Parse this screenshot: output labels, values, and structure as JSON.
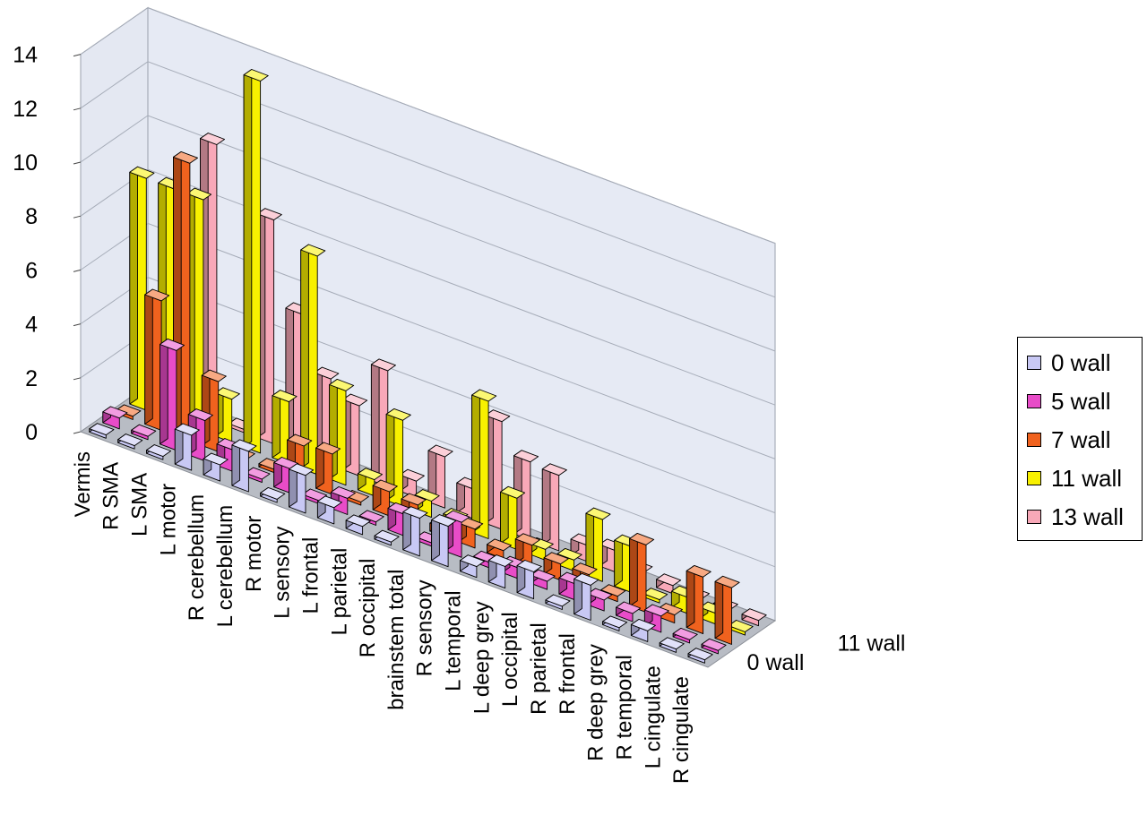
{
  "chart_data": {
    "type": "bar",
    "subtype": "3d-column",
    "title": "",
    "categories": [
      "Vermis",
      "R SMA",
      "L SMA",
      "L motor",
      "R cerebellum",
      "L cerebellum",
      "R motor",
      "L sensory",
      "L frontal",
      "L parietal",
      "R occipital",
      "brainstem total",
      "R sensory",
      "L temporal",
      "L deep grey",
      "L occipital",
      "R parietal",
      "R frontal",
      "R deep grey",
      "R temporal",
      "L cingulate",
      "R cingulate"
    ],
    "series": [
      {
        "name": "0 wall",
        "color": "#c8c8f4",
        "values": [
          0,
          0,
          0,
          1.3,
          0.6,
          1.5,
          0,
          1.4,
          0.6,
          0.3,
          0,
          1.4,
          1.5,
          0.4,
          0.8,
          1,
          0,
          1.3,
          0,
          0.4,
          0,
          0
        ]
      },
      {
        "name": "5 wall",
        "color": "#e84cc8",
        "values": [
          0.4,
          0,
          3.7,
          1.5,
          0.8,
          0,
          0.9,
          0,
          0.6,
          0,
          0.8,
          0,
          1.3,
          0.2,
          0.4,
          0.3,
          0.6,
          0.4,
          0.3,
          0.6,
          0,
          0
        ]
      },
      {
        "name": "7 wall",
        "color": "#f0621e",
        "values": [
          0,
          4.8,
          10.3,
          2.6,
          0,
          0,
          1.4,
          1.5,
          0,
          0.9,
          0.8,
          0.3,
          0.7,
          0.3,
          0.9,
          0.6,
          0.6,
          0.2,
          2.5,
          0.3,
          2.1,
          2.1
        ]
      },
      {
        "name": "11 wall",
        "color": "#f8f000",
        "values": [
          8.6,
          8.6,
          8.6,
          1.6,
          13.8,
          2.3,
          8.1,
          3.5,
          0.6,
          3.2,
          0.6,
          0.3,
          5.1,
          1.9,
          0.4,
          0.4,
          2.3,
          1.7,
          0,
          0.6,
          0.4,
          0
        ]
      },
      {
        "name": "13 wall",
        "color": "#f8a8b8",
        "values": [
          0,
          0,
          10.3,
          0,
          8.3,
          5.2,
          3.2,
          2.6,
          4.3,
          0.6,
          1.9,
          1.1,
          4.0,
          2.9,
          2.8,
          0.6,
          0.8,
          0.4,
          0.3,
          0.2,
          0.2,
          0.2
        ]
      }
    ],
    "ylim": [
      0,
      14
    ],
    "yticks": [
      0,
      2,
      4,
      6,
      8,
      10,
      12,
      14
    ],
    "depth_axis_labels": [
      "11 wall",
      "0 wall"
    ],
    "grid": true,
    "legend_position": "right"
  }
}
